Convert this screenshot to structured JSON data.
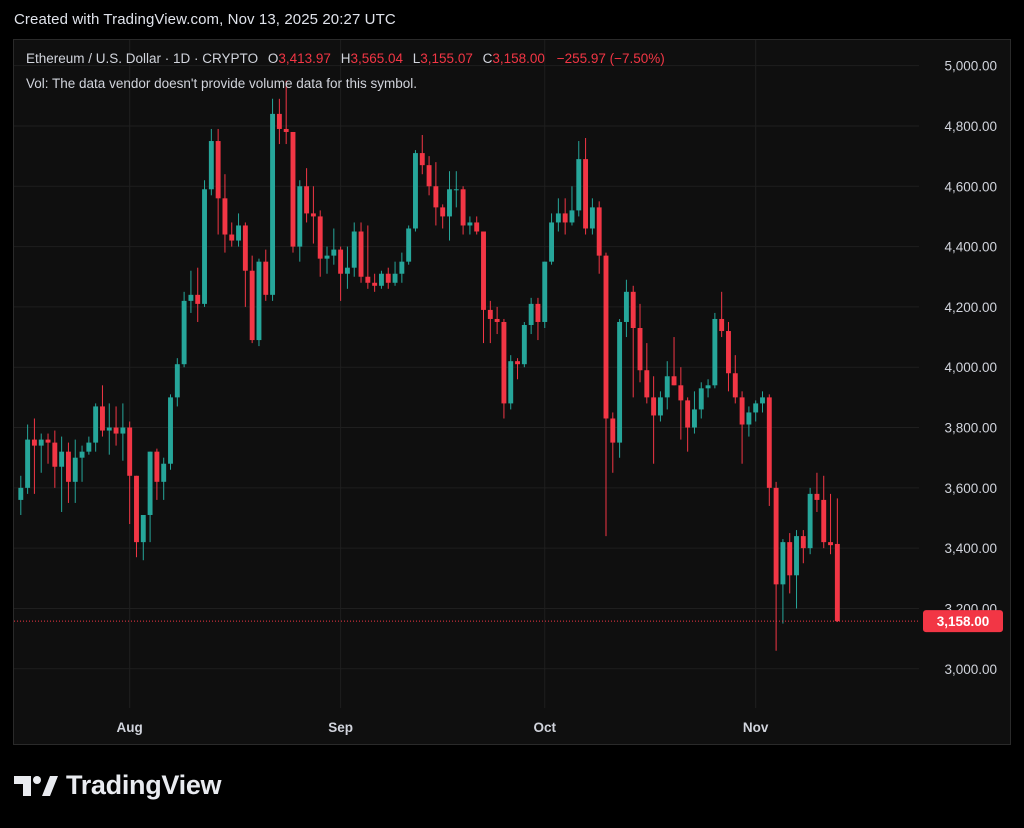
{
  "caption": "Created with TradingView.com, Nov 13, 2025 20:27 UTC",
  "legend": {
    "symbol": "Ethereum / U.S. Dollar · 1D · CRYPTO",
    "open_label": "O",
    "open": "3,413.97",
    "high_label": "H",
    "high": "3,565.04",
    "low_label": "L",
    "low": "3,155.07",
    "close_label": "C",
    "close": "3,158.00",
    "change": "−255.97 (−7.50%)",
    "volume_note": "Vol: The data vendor doesn't provide volume data for this symbol."
  },
  "brand": "TradingView",
  "colors": {
    "up": "#26a69a",
    "down": "#f23645",
    "background": "#0f0f0f",
    "grid": "#1f1f1f",
    "price_tag": "#f23645"
  },
  "chart_data": {
    "type": "candlestick",
    "y_axis": {
      "ticks": [
        3000,
        3200,
        3400,
        3600,
        3800,
        4000,
        4200,
        4400,
        4600,
        4800,
        5000
      ],
      "tick_labels": [
        "3,000.00",
        "3,200.00",
        "3,400.00",
        "3,600.00",
        "3,800.00",
        "4,000.00",
        "4,200.00",
        "4,400.00",
        "4,600.00",
        "4,800.00",
        "5,000.00"
      ],
      "range": [
        2870,
        5085
      ]
    },
    "x_axis": {
      "months": [
        {
          "label": "Aug",
          "date": "2025-08-01"
        },
        {
          "label": "Sep",
          "date": "2025-09-01"
        },
        {
          "label": "Oct",
          "date": "2025-10-01"
        },
        {
          "label": "Nov",
          "date": "2025-11-01"
        }
      ],
      "range": [
        "2025-07-15",
        "2025-11-25"
      ]
    },
    "last_price": {
      "value": 3158.0,
      "label": "3,158.00"
    },
    "candles": [
      {
        "d": "2025-07-16",
        "o": 3560,
        "h": 3640,
        "l": 3510,
        "c": 3600
      },
      {
        "d": "2025-07-17",
        "o": 3600,
        "h": 3810,
        "l": 3580,
        "c": 3760
      },
      {
        "d": "2025-07-18",
        "o": 3760,
        "h": 3830,
        "l": 3580,
        "c": 3740
      },
      {
        "d": "2025-07-19",
        "o": 3740,
        "h": 3780,
        "l": 3650,
        "c": 3760
      },
      {
        "d": "2025-07-20",
        "o": 3760,
        "h": 3780,
        "l": 3680,
        "c": 3750
      },
      {
        "d": "2025-07-21",
        "o": 3750,
        "h": 3790,
        "l": 3600,
        "c": 3670
      },
      {
        "d": "2025-07-22",
        "o": 3670,
        "h": 3770,
        "l": 3520,
        "c": 3720
      },
      {
        "d": "2025-07-23",
        "o": 3720,
        "h": 3750,
        "l": 3550,
        "c": 3620
      },
      {
        "d": "2025-07-24",
        "o": 3620,
        "h": 3760,
        "l": 3550,
        "c": 3700
      },
      {
        "d": "2025-07-25",
        "o": 3700,
        "h": 3740,
        "l": 3620,
        "c": 3720
      },
      {
        "d": "2025-07-26",
        "o": 3720,
        "h": 3770,
        "l": 3710,
        "c": 3750
      },
      {
        "d": "2025-07-27",
        "o": 3750,
        "h": 3880,
        "l": 3720,
        "c": 3870
      },
      {
        "d": "2025-07-28",
        "o": 3870,
        "h": 3940,
        "l": 3770,
        "c": 3790
      },
      {
        "d": "2025-07-29",
        "o": 3790,
        "h": 3880,
        "l": 3710,
        "c": 3800
      },
      {
        "d": "2025-07-30",
        "o": 3800,
        "h": 3870,
        "l": 3740,
        "c": 3780
      },
      {
        "d": "2025-07-31",
        "o": 3780,
        "h": 3880,
        "l": 3690,
        "c": 3800
      },
      {
        "d": "2025-08-01",
        "o": 3800,
        "h": 3820,
        "l": 3480,
        "c": 3640
      },
      {
        "d": "2025-08-02",
        "o": 3640,
        "h": 3640,
        "l": 3370,
        "c": 3420
      },
      {
        "d": "2025-08-03",
        "o": 3420,
        "h": 3510,
        "l": 3360,
        "c": 3510
      },
      {
        "d": "2025-08-04",
        "o": 3510,
        "h": 3720,
        "l": 3420,
        "c": 3720
      },
      {
        "d": "2025-08-05",
        "o": 3720,
        "h": 3730,
        "l": 3560,
        "c": 3620
      },
      {
        "d": "2025-08-06",
        "o": 3620,
        "h": 3700,
        "l": 3560,
        "c": 3680
      },
      {
        "d": "2025-08-07",
        "o": 3680,
        "h": 3910,
        "l": 3660,
        "c": 3900
      },
      {
        "d": "2025-08-08",
        "o": 3900,
        "h": 4030,
        "l": 3870,
        "c": 4010
      },
      {
        "d": "2025-08-09",
        "o": 4010,
        "h": 4250,
        "l": 4000,
        "c": 4220
      },
      {
        "d": "2025-08-10",
        "o": 4220,
        "h": 4320,
        "l": 4180,
        "c": 4240
      },
      {
        "d": "2025-08-11",
        "o": 4240,
        "h": 4330,
        "l": 4150,
        "c": 4210
      },
      {
        "d": "2025-08-12",
        "o": 4210,
        "h": 4620,
        "l": 4200,
        "c": 4590
      },
      {
        "d": "2025-08-13",
        "o": 4590,
        "h": 4790,
        "l": 4570,
        "c": 4750
      },
      {
        "d": "2025-08-14",
        "o": 4750,
        "h": 4790,
        "l": 4440,
        "c": 4560
      },
      {
        "d": "2025-08-15",
        "o": 4560,
        "h": 4640,
        "l": 4380,
        "c": 4440
      },
      {
        "d": "2025-08-16",
        "o": 4440,
        "h": 4480,
        "l": 4400,
        "c": 4420
      },
      {
        "d": "2025-08-17",
        "o": 4420,
        "h": 4510,
        "l": 4400,
        "c": 4470
      },
      {
        "d": "2025-08-18",
        "o": 4470,
        "h": 4480,
        "l": 4200,
        "c": 4320
      },
      {
        "d": "2025-08-19",
        "o": 4320,
        "h": 4370,
        "l": 4080,
        "c": 4090
      },
      {
        "d": "2025-08-20",
        "o": 4090,
        "h": 4360,
        "l": 4070,
        "c": 4350
      },
      {
        "d": "2025-08-21",
        "o": 4350,
        "h": 4390,
        "l": 4220,
        "c": 4240
      },
      {
        "d": "2025-08-22",
        "o": 4240,
        "h": 4890,
        "l": 4220,
        "c": 4840
      },
      {
        "d": "2025-08-23",
        "o": 4840,
        "h": 4890,
        "l": 4740,
        "c": 4790
      },
      {
        "d": "2025-08-24",
        "o": 4790,
        "h": 4950,
        "l": 4740,
        "c": 4780
      },
      {
        "d": "2025-08-25",
        "o": 4780,
        "h": 4780,
        "l": 4380,
        "c": 4400
      },
      {
        "d": "2025-08-26",
        "o": 4400,
        "h": 4620,
        "l": 4350,
        "c": 4600
      },
      {
        "d": "2025-08-27",
        "o": 4600,
        "h": 4660,
        "l": 4480,
        "c": 4510
      },
      {
        "d": "2025-08-28",
        "o": 4510,
        "h": 4600,
        "l": 4410,
        "c": 4500
      },
      {
        "d": "2025-08-29",
        "o": 4500,
        "h": 4520,
        "l": 4300,
        "c": 4360
      },
      {
        "d": "2025-08-30",
        "o": 4360,
        "h": 4400,
        "l": 4310,
        "c": 4370
      },
      {
        "d": "2025-08-31",
        "o": 4370,
        "h": 4460,
        "l": 4340,
        "c": 4390
      },
      {
        "d": "2025-09-01",
        "o": 4390,
        "h": 4400,
        "l": 4220,
        "c": 4310
      },
      {
        "d": "2025-09-02",
        "o": 4310,
        "h": 4400,
        "l": 4260,
        "c": 4330
      },
      {
        "d": "2025-09-03",
        "o": 4330,
        "h": 4480,
        "l": 4300,
        "c": 4450
      },
      {
        "d": "2025-09-04",
        "o": 4450,
        "h": 4480,
        "l": 4280,
        "c": 4300
      },
      {
        "d": "2025-09-05",
        "o": 4300,
        "h": 4470,
        "l": 4260,
        "c": 4280
      },
      {
        "d": "2025-09-06",
        "o": 4280,
        "h": 4310,
        "l": 4250,
        "c": 4270
      },
      {
        "d": "2025-09-07",
        "o": 4270,
        "h": 4320,
        "l": 4260,
        "c": 4310
      },
      {
        "d": "2025-09-08",
        "o": 4310,
        "h": 4330,
        "l": 4260,
        "c": 4280
      },
      {
        "d": "2025-09-09",
        "o": 4280,
        "h": 4350,
        "l": 4270,
        "c": 4310
      },
      {
        "d": "2025-09-10",
        "o": 4310,
        "h": 4380,
        "l": 4280,
        "c": 4350
      },
      {
        "d": "2025-09-11",
        "o": 4350,
        "h": 4470,
        "l": 4340,
        "c": 4460
      },
      {
        "d": "2025-09-12",
        "o": 4460,
        "h": 4720,
        "l": 4450,
        "c": 4710
      },
      {
        "d": "2025-09-13",
        "o": 4710,
        "h": 4770,
        "l": 4640,
        "c": 4670
      },
      {
        "d": "2025-09-14",
        "o": 4670,
        "h": 4700,
        "l": 4570,
        "c": 4600
      },
      {
        "d": "2025-09-15",
        "o": 4600,
        "h": 4680,
        "l": 4470,
        "c": 4530
      },
      {
        "d": "2025-09-16",
        "o": 4530,
        "h": 4540,
        "l": 4460,
        "c": 4500
      },
      {
        "d": "2025-09-17",
        "o": 4500,
        "h": 4650,
        "l": 4420,
        "c": 4590
      },
      {
        "d": "2025-09-18",
        "o": 4590,
        "h": 4650,
        "l": 4530,
        "c": 4590
      },
      {
        "d": "2025-09-19",
        "o": 4590,
        "h": 4600,
        "l": 4440,
        "c": 4470
      },
      {
        "d": "2025-09-20",
        "o": 4470,
        "h": 4500,
        "l": 4440,
        "c": 4480
      },
      {
        "d": "2025-09-21",
        "o": 4480,
        "h": 4500,
        "l": 4440,
        "c": 4450
      },
      {
        "d": "2025-09-22",
        "o": 4450,
        "h": 4450,
        "l": 4080,
        "c": 4190
      },
      {
        "d": "2025-09-23",
        "o": 4190,
        "h": 4220,
        "l": 4080,
        "c": 4160
      },
      {
        "d": "2025-09-24",
        "o": 4160,
        "h": 4200,
        "l": 4110,
        "c": 4150
      },
      {
        "d": "2025-09-25",
        "o": 4150,
        "h": 4160,
        "l": 3830,
        "c": 3880
      },
      {
        "d": "2025-09-26",
        "o": 3880,
        "h": 4040,
        "l": 3860,
        "c": 4020
      },
      {
        "d": "2025-09-27",
        "o": 4020,
        "h": 4030,
        "l": 3960,
        "c": 4010
      },
      {
        "d": "2025-09-28",
        "o": 4010,
        "h": 4150,
        "l": 4000,
        "c": 4140
      },
      {
        "d": "2025-09-29",
        "o": 4140,
        "h": 4230,
        "l": 4110,
        "c": 4210
      },
      {
        "d": "2025-09-30",
        "o": 4210,
        "h": 4230,
        "l": 4090,
        "c": 4150
      },
      {
        "d": "2025-10-01",
        "o": 4150,
        "h": 4350,
        "l": 4130,
        "c": 4350
      },
      {
        "d": "2025-10-02",
        "o": 4350,
        "h": 4510,
        "l": 4340,
        "c": 4480
      },
      {
        "d": "2025-10-03",
        "o": 4480,
        "h": 4560,
        "l": 4450,
        "c": 4510
      },
      {
        "d": "2025-10-04",
        "o": 4510,
        "h": 4560,
        "l": 4440,
        "c": 4480
      },
      {
        "d": "2025-10-05",
        "o": 4480,
        "h": 4600,
        "l": 4470,
        "c": 4520
      },
      {
        "d": "2025-10-06",
        "o": 4520,
        "h": 4750,
        "l": 4500,
        "c": 4690
      },
      {
        "d": "2025-10-07",
        "o": 4690,
        "h": 4760,
        "l": 4440,
        "c": 4460
      },
      {
        "d": "2025-10-08",
        "o": 4460,
        "h": 4560,
        "l": 4440,
        "c": 4530
      },
      {
        "d": "2025-10-09",
        "o": 4530,
        "h": 4550,
        "l": 4310,
        "c": 4370
      },
      {
        "d": "2025-10-10",
        "o": 4370,
        "h": 4380,
        "l": 3440,
        "c": 3830
      },
      {
        "d": "2025-10-11",
        "o": 3830,
        "h": 3850,
        "l": 3650,
        "c": 3750
      },
      {
        "d": "2025-10-12",
        "o": 3750,
        "h": 4160,
        "l": 3700,
        "c": 4150
      },
      {
        "d": "2025-10-13",
        "o": 4150,
        "h": 4290,
        "l": 4100,
        "c": 4250
      },
      {
        "d": "2025-10-14",
        "o": 4250,
        "h": 4270,
        "l": 3900,
        "c": 4130
      },
      {
        "d": "2025-10-15",
        "o": 4130,
        "h": 4210,
        "l": 3950,
        "c": 3990
      },
      {
        "d": "2025-10-16",
        "o": 3990,
        "h": 4080,
        "l": 3880,
        "c": 3900
      },
      {
        "d": "2025-10-17",
        "o": 3900,
        "h": 3970,
        "l": 3680,
        "c": 3840
      },
      {
        "d": "2025-10-18",
        "o": 3840,
        "h": 3920,
        "l": 3820,
        "c": 3900
      },
      {
        "d": "2025-10-19",
        "o": 3900,
        "h": 4020,
        "l": 3860,
        "c": 3970
      },
      {
        "d": "2025-10-20",
        "o": 3970,
        "h": 4100,
        "l": 3940,
        "c": 3940
      },
      {
        "d": "2025-10-21",
        "o": 3940,
        "h": 4000,
        "l": 3760,
        "c": 3890
      },
      {
        "d": "2025-10-22",
        "o": 3890,
        "h": 3900,
        "l": 3720,
        "c": 3800
      },
      {
        "d": "2025-10-23",
        "o": 3800,
        "h": 3920,
        "l": 3780,
        "c": 3860
      },
      {
        "d": "2025-10-24",
        "o": 3860,
        "h": 3950,
        "l": 3830,
        "c": 3930
      },
      {
        "d": "2025-10-25",
        "o": 3930,
        "h": 3960,
        "l": 3900,
        "c": 3940
      },
      {
        "d": "2025-10-26",
        "o": 3940,
        "h": 4180,
        "l": 3930,
        "c": 4160
      },
      {
        "d": "2025-10-27",
        "o": 4160,
        "h": 4250,
        "l": 4100,
        "c": 4120
      },
      {
        "d": "2025-10-28",
        "o": 4120,
        "h": 4150,
        "l": 3920,
        "c": 3980
      },
      {
        "d": "2025-10-29",
        "o": 3980,
        "h": 4040,
        "l": 3880,
        "c": 3900
      },
      {
        "d": "2025-10-30",
        "o": 3900,
        "h": 3920,
        "l": 3680,
        "c": 3810
      },
      {
        "d": "2025-10-31",
        "o": 3810,
        "h": 3870,
        "l": 3770,
        "c": 3850
      },
      {
        "d": "2025-11-01",
        "o": 3850,
        "h": 3890,
        "l": 3820,
        "c": 3880
      },
      {
        "d": "2025-11-02",
        "o": 3880,
        "h": 3920,
        "l": 3850,
        "c": 3900
      },
      {
        "d": "2025-11-03",
        "o": 3900,
        "h": 3910,
        "l": 3540,
        "c": 3600
      },
      {
        "d": "2025-11-04",
        "o": 3600,
        "h": 3620,
        "l": 3060,
        "c": 3280
      },
      {
        "d": "2025-11-05",
        "o": 3280,
        "h": 3430,
        "l": 3150,
        "c": 3420
      },
      {
        "d": "2025-11-06",
        "o": 3420,
        "h": 3450,
        "l": 3250,
        "c": 3310
      },
      {
        "d": "2025-11-07",
        "o": 3310,
        "h": 3460,
        "l": 3200,
        "c": 3440
      },
      {
        "d": "2025-11-08",
        "o": 3440,
        "h": 3460,
        "l": 3350,
        "c": 3400
      },
      {
        "d": "2025-11-09",
        "o": 3400,
        "h": 3600,
        "l": 3380,
        "c": 3580
      },
      {
        "d": "2025-11-10",
        "o": 3580,
        "h": 3650,
        "l": 3520,
        "c": 3560
      },
      {
        "d": "2025-11-11",
        "o": 3560,
        "h": 3640,
        "l": 3400,
        "c": 3420
      },
      {
        "d": "2025-11-12",
        "o": 3420,
        "h": 3580,
        "l": 3380,
        "c": 3410
      },
      {
        "d": "2025-11-13",
        "o": 3413.97,
        "h": 3565.04,
        "l": 3155.07,
        "c": 3158.0
      }
    ]
  }
}
